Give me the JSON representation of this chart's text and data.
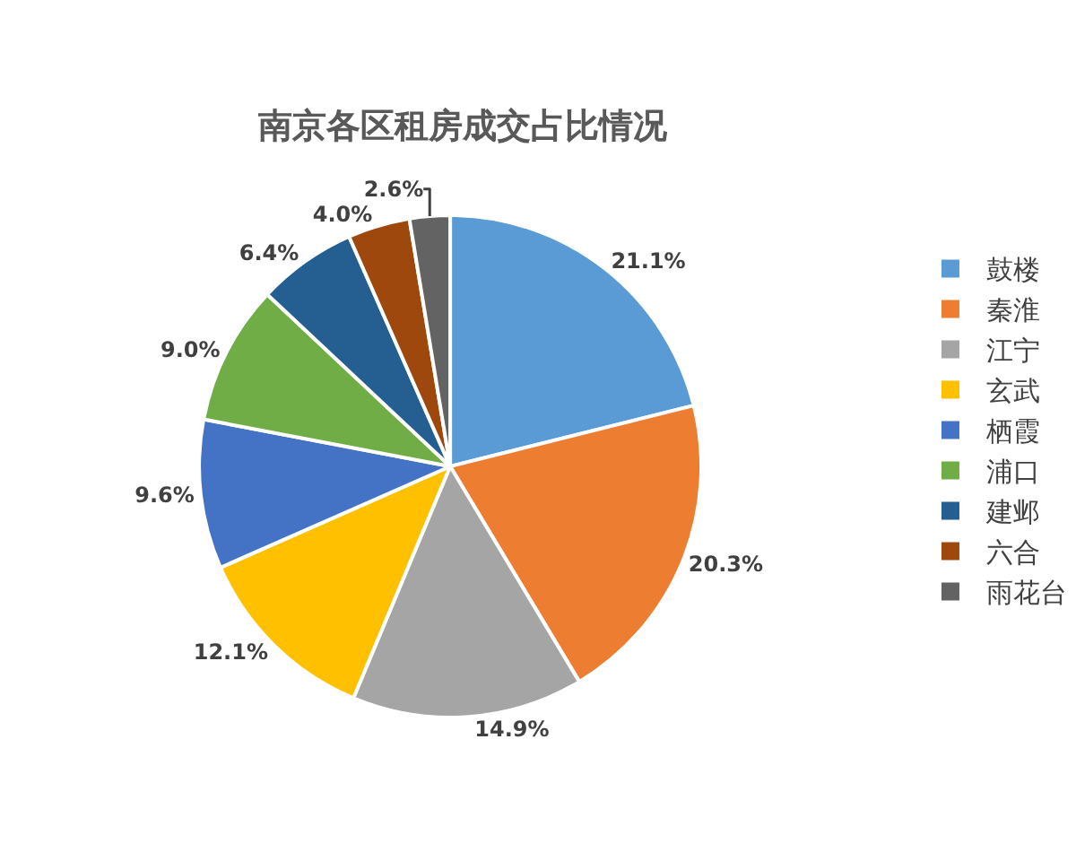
{
  "chart_data": {
    "type": "pie",
    "title": "南京各区租房成交占比情况",
    "categories": [
      "鼓楼",
      "秦淮",
      "江宁",
      "玄武",
      "栖霞",
      "浦口",
      "建邺",
      "六合",
      "雨花台"
    ],
    "values": [
      21.1,
      20.3,
      14.9,
      12.1,
      9.6,
      9.0,
      6.4,
      4.0,
      2.6
    ],
    "colors": [
      "#5b9bd5",
      "#ed7d31",
      "#a5a5a5",
      "#ffc000",
      "#4472c4",
      "#70ad47",
      "#255e91",
      "#9e480e",
      "#636363"
    ],
    "value_labels": [
      "21.1%",
      "20.3%",
      "14.9%",
      "12.1%",
      "9.6%",
      "9.0%",
      "6.4%",
      "4.0%",
      "2.6%"
    ],
    "legend": "right"
  }
}
